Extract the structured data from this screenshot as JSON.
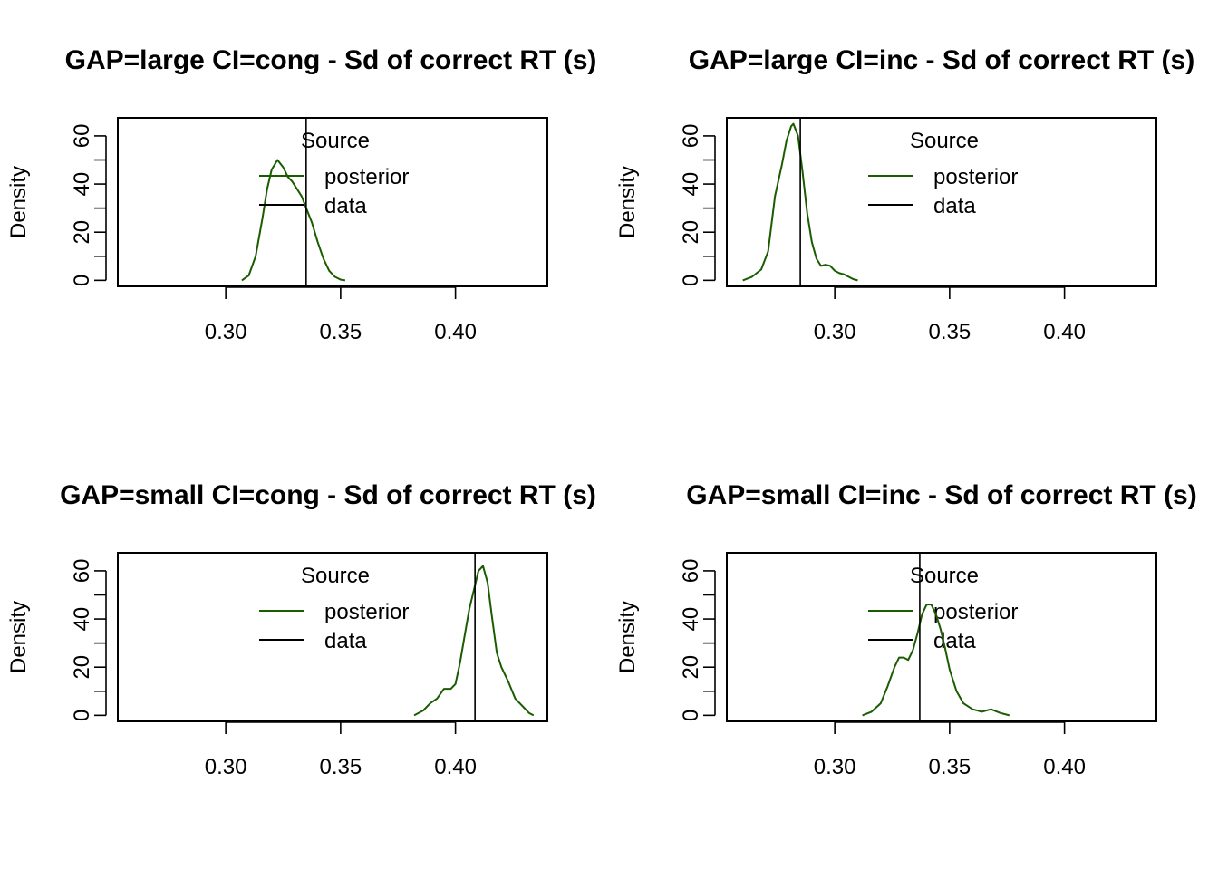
{
  "colors": {
    "posterior": "#1a5c00",
    "data": "#000000"
  },
  "chart_data": [
    {
      "type": "line",
      "title": "GAP=large CI=cong - Sd of correct RT (s)",
      "ylabel": "Density",
      "xlim": [
        0.253,
        0.44
      ],
      "ylim": [
        -2.5,
        67.5
      ],
      "xticks": [
        "0.30",
        "0.35",
        "0.40"
      ],
      "yticks": [
        "0",
        "20",
        "40",
        "60"
      ],
      "legend": {
        "title": "Source",
        "position": "top-center",
        "entries": [
          "posterior",
          "data"
        ]
      },
      "series": [
        {
          "name": "posterior",
          "x": [
            0.307,
            0.31,
            0.313,
            0.316,
            0.318,
            0.32,
            0.3225,
            0.325,
            0.327,
            0.329,
            0.331,
            0.333,
            0.335,
            0.3375,
            0.34,
            0.3425,
            0.345,
            0.3475,
            0.35,
            0.352
          ],
          "y": [
            0,
            2,
            10,
            26,
            38,
            46,
            50,
            47,
            43,
            41,
            38,
            35,
            30,
            24,
            16,
            9,
            4,
            1.5,
            0.3,
            0
          ]
        }
      ],
      "vline": {
        "name": "data",
        "x": 0.335
      }
    },
    {
      "type": "line",
      "title": "GAP=large CI=inc - Sd of correct RT (s)",
      "ylabel": "Density",
      "xlim": [
        0.253,
        0.44
      ],
      "ylim": [
        -2.5,
        67.5
      ],
      "xticks": [
        "0.30",
        "0.35",
        "0.40"
      ],
      "yticks": [
        "0",
        "20",
        "40",
        "60"
      ],
      "legend": {
        "title": "Source",
        "position": "top-center",
        "entries": [
          "posterior",
          "data"
        ]
      },
      "series": [
        {
          "name": "posterior",
          "x": [
            0.26,
            0.264,
            0.268,
            0.271,
            0.274,
            0.277,
            0.279,
            0.281,
            0.282,
            0.284,
            0.286,
            0.288,
            0.29,
            0.292,
            0.294,
            0.296,
            0.298,
            0.3,
            0.302,
            0.304,
            0.306,
            0.308,
            0.31
          ],
          "y": [
            0,
            1.5,
            4.5,
            12,
            35,
            48,
            58,
            64,
            65,
            60,
            45,
            28,
            16,
            9,
            6,
            6.5,
            6,
            4,
            3,
            2.5,
            1.5,
            0.5,
            0
          ]
        }
      ],
      "vline": {
        "name": "data",
        "x": 0.285
      }
    },
    {
      "type": "line",
      "title": "GAP=small CI=cong - Sd of correct RT (s)",
      "ylabel": "Density",
      "xlim": [
        0.253,
        0.44
      ],
      "ylim": [
        -2.5,
        67.5
      ],
      "xticks": [
        "0.30",
        "0.35",
        "0.40"
      ],
      "yticks": [
        "0",
        "20",
        "40",
        "60"
      ],
      "legend": {
        "title": "Source",
        "position": "top-center",
        "entries": [
          "posterior",
          "data"
        ]
      },
      "series": [
        {
          "name": "posterior",
          "x": [
            0.382,
            0.386,
            0.389,
            0.392,
            0.395,
            0.398,
            0.4,
            0.402,
            0.404,
            0.406,
            0.408,
            0.41,
            0.412,
            0.414,
            0.416,
            0.418,
            0.42,
            0.423,
            0.426,
            0.429,
            0.432,
            0.434
          ],
          "y": [
            0,
            2,
            5,
            7,
            11,
            11,
            13,
            22,
            33,
            44,
            52,
            60,
            62,
            55,
            40,
            26,
            20,
            14,
            7,
            4,
            1,
            0
          ]
        }
      ],
      "vline": {
        "name": "data",
        "x": 0.4085
      }
    },
    {
      "type": "line",
      "title": "GAP=small CI=inc - Sd of correct RT (s)",
      "ylabel": "Density",
      "xlim": [
        0.253,
        0.44
      ],
      "ylim": [
        -2.5,
        67.5
      ],
      "xticks": [
        "0.30",
        "0.35",
        "0.40"
      ],
      "yticks": [
        "0",
        "20",
        "40",
        "60"
      ],
      "legend": {
        "title": "Source",
        "position": "top-center",
        "entries": [
          "posterior",
          "data"
        ]
      },
      "series": [
        {
          "name": "posterior",
          "x": [
            0.312,
            0.316,
            0.32,
            0.323,
            0.326,
            0.328,
            0.33,
            0.332,
            0.334,
            0.336,
            0.338,
            0.34,
            0.342,
            0.344,
            0.346,
            0.348,
            0.35,
            0.353,
            0.356,
            0.36,
            0.364,
            0.368,
            0.372,
            0.376
          ],
          "y": [
            0,
            1.5,
            5,
            12,
            20,
            24,
            24,
            23,
            27,
            34,
            42,
            46,
            46,
            42,
            36,
            28,
            19,
            10,
            5,
            2.5,
            1.5,
            2.5,
            1,
            0
          ]
        }
      ],
      "vline": {
        "name": "data",
        "x": 0.337
      }
    }
  ]
}
